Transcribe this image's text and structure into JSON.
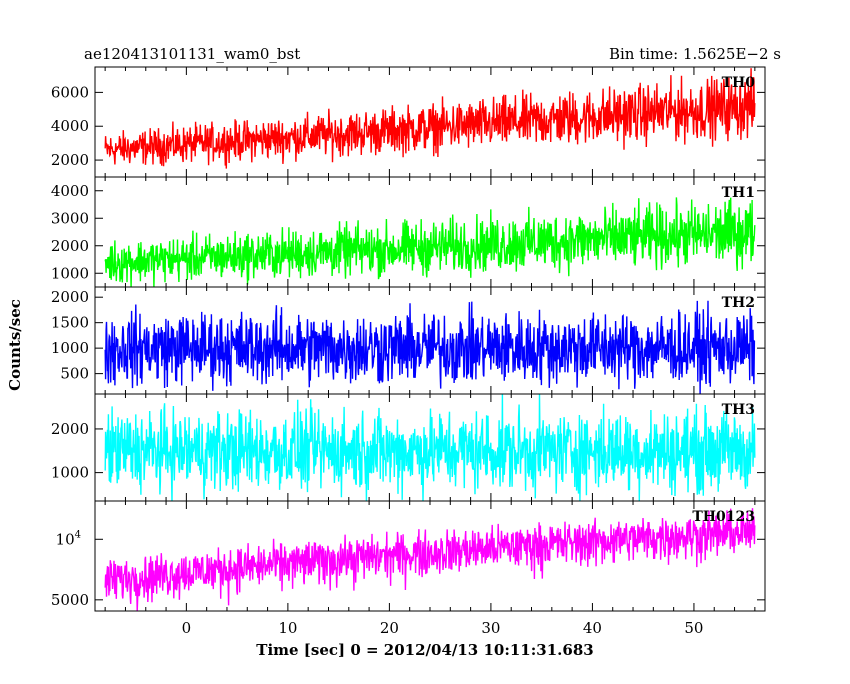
{
  "chart_data": {
    "type": "line",
    "title_left": "ae120413101131_wam0_bst",
    "title_right": "Bin time: 1.5625E−2 s",
    "xlabel": "Time [sec] 0 = 2012/04/13 10:11:31.683",
    "ylabel": "Counts/sec",
    "x_range": [
      -9,
      57
    ],
    "x_ticks": [
      0,
      10,
      20,
      30,
      40,
      50
    ],
    "x_tick_labels": [
      "0",
      "10",
      "20",
      "30",
      "40",
      "50"
    ],
    "x_data_range": [
      -8,
      56
    ],
    "series": [
      {
        "name": "TH0",
        "color": "#ff0000",
        "y_range": [
          1000,
          7500
        ],
        "y_ticks": [
          2000,
          4000,
          6000
        ],
        "y_tick_labels": [
          "2000",
          "4000",
          "6000"
        ],
        "trend_start": 2600,
        "trend_end": 5200,
        "noise_halfwidth_start": 900,
        "noise_halfwidth_end": 1700,
        "scale": "linear"
      },
      {
        "name": "TH1",
        "color": "#00ff00",
        "y_range": [
          500,
          4500
        ],
        "y_ticks": [
          1000,
          2000,
          3000,
          4000
        ],
        "y_tick_labels": [
          "1000",
          "2000",
          "3000",
          "4000"
        ],
        "trend_start": 1400,
        "trend_end": 2500,
        "noise_halfwidth_start": 700,
        "noise_halfwidth_end": 1100,
        "scale": "linear"
      },
      {
        "name": "TH2",
        "color": "#0000ff",
        "y_range": [
          100,
          2200
        ],
        "y_ticks": [
          500,
          1000,
          1500,
          2000
        ],
        "y_tick_labels": [
          "500",
          "1000",
          "1500",
          "2000"
        ],
        "trend_start": 1000,
        "trend_end": 1000,
        "noise_halfwidth_start": 650,
        "noise_halfwidth_end": 650,
        "scale": "linear"
      },
      {
        "name": "TH3",
        "color": "#00ffff",
        "y_range": [
          350,
          2800
        ],
        "y_ticks": [
          1000,
          2000
        ],
        "y_tick_labels": [
          "1000",
          "2000"
        ],
        "trend_start": 1500,
        "trend_end": 1500,
        "noise_halfwidth_start": 850,
        "noise_halfwidth_end": 850,
        "scale": "linear"
      },
      {
        "name": "TH0123",
        "color": "#ff00ff",
        "y_range": [
          4400,
          15500
        ],
        "y_ticks": [
          5000,
          10000
        ],
        "y_tick_labels": [
          "5000",
          "10^4"
        ],
        "trend_start": 6300,
        "trend_end": 11000,
        "noise_halfwidth_start": 1500,
        "noise_halfwidth_end": 2600,
        "scale": "log"
      }
    ]
  }
}
